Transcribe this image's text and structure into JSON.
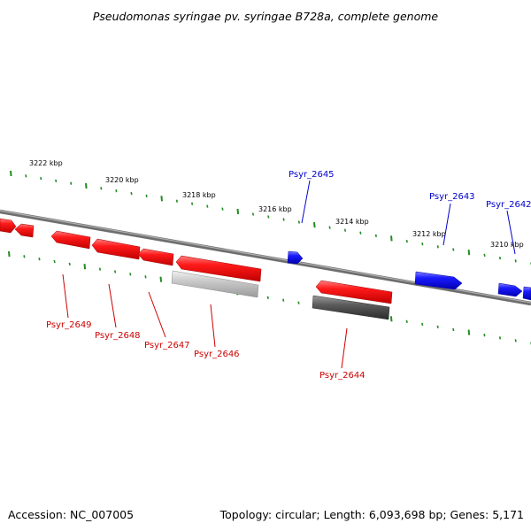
{
  "title": "Pseudomonas syringae pv. syringae B728a, complete genome",
  "footer": {
    "accession": "Accession: NC_007005",
    "summary": "Topology: circular; Length: 6,093,698 bp; Genes: 5,171"
  },
  "scale_labels": [
    "3222 kbp",
    "3220 kbp",
    "3218 kbp",
    "3216 kbp",
    "3214 kbp",
    "3212 kbp",
    "3210 kbp"
  ],
  "genes": [
    {
      "name": "Psyr_2649",
      "strand": "minus"
    },
    {
      "name": "Psyr_2648",
      "strand": "minus"
    },
    {
      "name": "Psyr_2647",
      "strand": "minus"
    },
    {
      "name": "Psyr_2646",
      "strand": "minus"
    },
    {
      "name": "Psyr_2645",
      "strand": "plus"
    },
    {
      "name": "Psyr_2644",
      "strand": "minus"
    },
    {
      "name": "Psyr_2643",
      "strand": "plus"
    },
    {
      "name": "Psyr_2642",
      "strand": "plus"
    }
  ],
  "colors": {
    "minus_strand": "#ff1a1a",
    "plus_strand": "#1a1aff",
    "backbone": "#8a8a8a",
    "scale_ticks": "#228b22",
    "ncrna_light": "#c8c8c8",
    "ncrna_dark": "#5a5a5a"
  }
}
